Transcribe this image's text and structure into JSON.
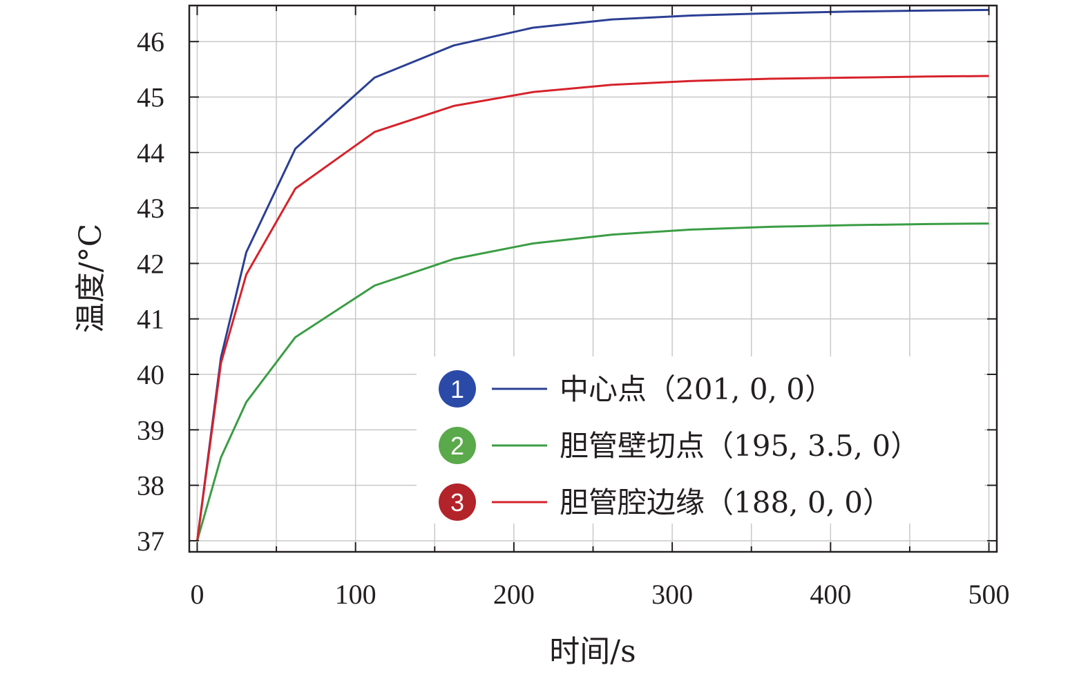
{
  "chart_data": {
    "type": "line",
    "xlabel": "时间/s",
    "ylabel": "温度/°C",
    "xlim": [
      -5,
      505
    ],
    "ylim": [
      36.8,
      46.65
    ],
    "xticks": [
      0,
      100,
      200,
      300,
      400,
      500
    ],
    "yticks": [
      37,
      38,
      39,
      40,
      41,
      42,
      43,
      44,
      45,
      46
    ],
    "xtick_labels": [
      "0",
      "100",
      "200",
      "300",
      "400",
      "500"
    ],
    "ytick_labels": [
      "37",
      "38",
      "39",
      "40",
      "41",
      "42",
      "43",
      "44",
      "45",
      "46"
    ],
    "grid": true,
    "legend_position": "bottom-right",
    "series": [
      {
        "marker": "1",
        "name": "中心点（201, 0, 0）",
        "color": "#2b3f94",
        "x": [
          0,
          15,
          31,
          62,
          112,
          162,
          212,
          262,
          312,
          362,
          412,
          462,
          500
        ],
        "y": [
          37,
          40.3,
          42.2,
          44.07,
          45.35,
          45.93,
          46.25,
          46.4,
          46.47,
          46.51,
          46.54,
          46.56,
          46.57
        ]
      },
      {
        "marker": "2",
        "name": "胆管壁切点（195, 3.5, 0）",
        "color": "#3a9d44",
        "x": [
          0,
          15,
          31,
          62,
          112,
          162,
          212,
          262,
          312,
          362,
          412,
          462,
          500
        ],
        "y": [
          37,
          38.5,
          39.5,
          40.67,
          41.6,
          42.08,
          42.36,
          42.52,
          42.61,
          42.66,
          42.69,
          42.71,
          42.72
        ]
      },
      {
        "marker": "3",
        "name": "胆管腔边缘（188, 0, 0）",
        "color": "#d6222a",
        "x": [
          0,
          15,
          31,
          62,
          112,
          162,
          212,
          262,
          312,
          362,
          412,
          462,
          500
        ],
        "y": [
          37,
          40.2,
          41.8,
          43.35,
          44.37,
          44.84,
          45.09,
          45.22,
          45.29,
          45.33,
          45.35,
          45.37,
          45.38
        ]
      }
    ]
  },
  "colors": {
    "axis": "#231f20",
    "grid": "#c8c8c8",
    "legend_marker_1": "#2b4aa8",
    "legend_marker_2": "#5aa94a",
    "legend_marker_3": "#b3232a"
  }
}
